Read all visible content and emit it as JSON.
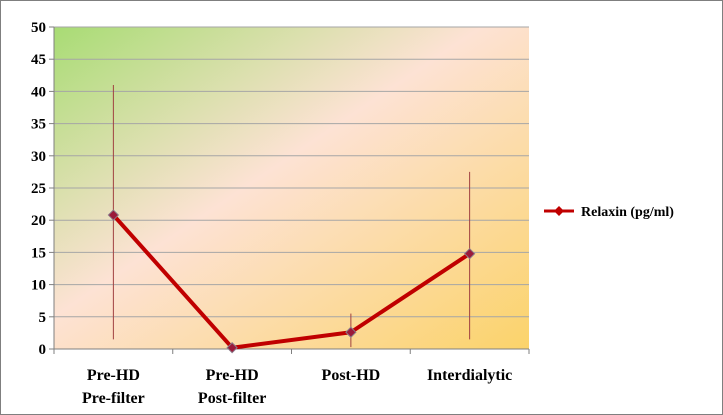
{
  "chart_data": {
    "type": "line",
    "categories": [
      [
        "Pre-HD",
        "Pre-filter"
      ],
      [
        "Pre-HD",
        "Post-filter"
      ],
      [
        "Post-HD"
      ],
      [
        "Interdialytic"
      ]
    ],
    "series": [
      {
        "name": "Relaxin (pg/ml)",
        "values": [
          20.8,
          0.2,
          2.6,
          14.8
        ],
        "error_low": [
          1.5,
          0.2,
          0.3,
          1.5
        ],
        "error_high": [
          41,
          0.2,
          5.5,
          27.5
        ],
        "color": "#c00000"
      }
    ],
    "y_ticks": [
      "0",
      "5",
      "10",
      "15",
      "20",
      "25",
      "30",
      "35",
      "40",
      "45",
      "50"
    ],
    "ylim": [
      0,
      50
    ],
    "grid": true,
    "legend_position": "right",
    "colors": {
      "plot_gradient_start": "#a8dc74",
      "plot_gradient_mid": "#fde2d4",
      "plot_gradient_end": "#fbd36a",
      "gridline": "#a6a6a6",
      "error_bar": "#a04040"
    }
  }
}
